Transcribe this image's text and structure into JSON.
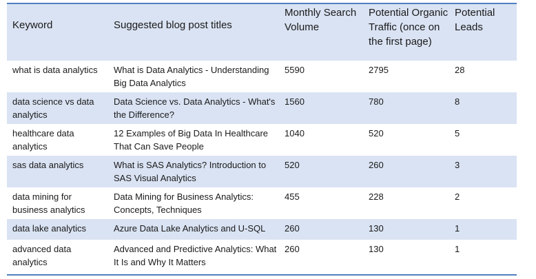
{
  "table": {
    "headers": [
      "Keyword",
      "Suggested blog post titles",
      "Monthly Search Volume",
      "Potential Organic Traffic (once on the first page)",
      "Potential Leads"
    ],
    "rows": [
      [
        "what is data analytics",
        "What is Data Analytics - Understanding Big Data Analytics",
        "5590",
        "2795",
        "28"
      ],
      [
        "data science vs data analytics",
        "Data Science vs. Data Analytics - What's the Difference?",
        "1560",
        "780",
        "8"
      ],
      [
        "healthcare data analytics",
        "12 Examples of Big Data In Healthcare That Can Save People",
        "1040",
        "520",
        "5"
      ],
      [
        "sas data analytics",
        "What is SAS Analytics? Introduction to SAS Visual Analytics",
        "520",
        "260",
        "3"
      ],
      [
        "data mining for business analytics",
        "Data Mining for Business Analytics: Concepts, Techniques",
        "455",
        "228",
        "2"
      ],
      [
        "data lake analytics",
        "Azure Data Lake Analytics and U-SQL",
        "260",
        "130",
        "1"
      ],
      [
        "advanced data analytics",
        "Advanced and Predictive Analytics: What It Is and Why It Matters",
        "260",
        "130",
        "1"
      ]
    ]
  },
  "colors": {
    "header_bg": "#dae3f3",
    "band_bg": "#dae3f3",
    "rule": "#4f7fbf"
  }
}
